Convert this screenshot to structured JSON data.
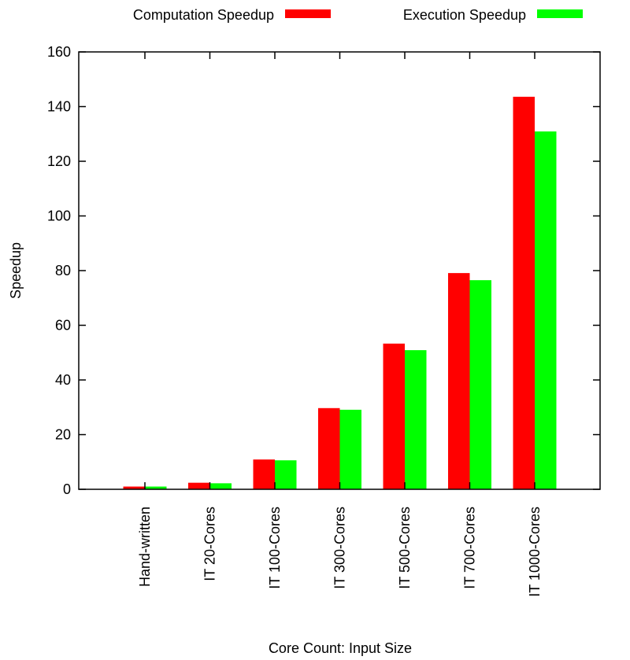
{
  "chart_data": {
    "type": "bar",
    "title": "",
    "xlabel": "Core Count: Input Size",
    "ylabel": "Speedup",
    "ylim": [
      0,
      160
    ],
    "yticks": [
      0,
      20,
      40,
      60,
      80,
      100,
      120,
      140,
      160
    ],
    "grid": false,
    "legend_position": "top",
    "categories": [
      "Hand-written",
      "IT 20-Cores",
      "IT 100-Cores",
      "IT 300-Cores",
      "IT 500-Cores",
      "IT 700-Cores",
      "IT 1000-Cores"
    ],
    "series": [
      {
        "name": "Computation Speedup",
        "color": "#ff0000",
        "values": [
          1,
          2.4,
          10.9,
          29.7,
          53.3,
          79.1,
          143.6
        ]
      },
      {
        "name": "Execution Speedup",
        "color": "#00ff00",
        "values": [
          1,
          2.2,
          10.6,
          29.1,
          50.9,
          76.5,
          130.9
        ]
      }
    ]
  }
}
